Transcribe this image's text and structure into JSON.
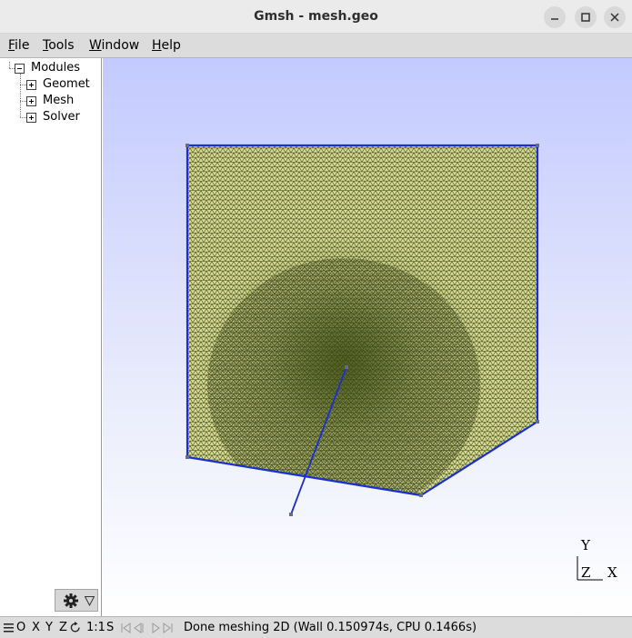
{
  "window": {
    "title": "Gmsh - mesh.geo",
    "controls": [
      "minimize-icon",
      "maximize-icon",
      "close-icon"
    ]
  },
  "menubar": {
    "items": [
      {
        "label": "File",
        "mnemonic": "F",
        "rest": "ile"
      },
      {
        "label": "Tools",
        "mnemonic": "T",
        "rest": "ools"
      },
      {
        "label": "Window",
        "mnemonic": "W",
        "rest": "indow"
      },
      {
        "label": "Help",
        "mnemonic": "H",
        "rest": "elp"
      }
    ]
  },
  "tree": {
    "root": "Modules",
    "children": [
      "Geomet",
      "Mesh",
      "Solver"
    ]
  },
  "axes_triad": {
    "y": "Y",
    "z": "Z",
    "x": "X"
  },
  "statusbar": {
    "buttons": [
      "O",
      "X",
      "Y",
      "Z",
      "1:1",
      "S"
    ],
    "message": "Done meshing 2D (Wall 0.150974s, CPU 0.1466s)"
  },
  "colors": {
    "mesh_fill": "#d4d98a",
    "mesh_edge": "#2f3a10",
    "curve": "#1a2fd0",
    "background_top": "#c3caff"
  }
}
